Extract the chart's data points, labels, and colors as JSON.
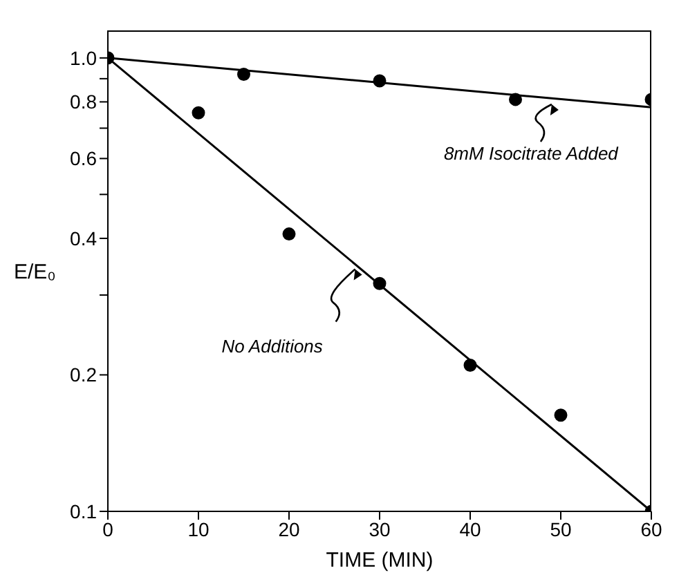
{
  "chart_data": {
    "type": "scatter",
    "xlabel": "TIME (MIN)",
    "ylabel": "E/E₀",
    "log": "y",
    "xlim": [
      0,
      60
    ],
    "xticks": [
      0,
      10,
      20,
      30,
      40,
      50,
      60
    ],
    "ylim": [
      0.1,
      1.15
    ],
    "yticks": [
      0.1,
      0.2,
      {
        "value": 0.3,
        "label": null
      },
      0.4,
      {
        "value": 0.5,
        "label": null
      },
      0.6,
      {
        "value": 0.7,
        "label": null
      },
      0.8,
      {
        "value": 0.9,
        "label": null
      },
      {
        "value": 1,
        "label": "1.0"
      }
    ],
    "series": [
      {
        "marker": "circle",
        "color": "#000000",
        "x": [
          15,
          30,
          45,
          60
        ],
        "values": [
          0.92,
          0.89,
          0.81,
          0.81
        ]
      },
      {
        "marker": "circle",
        "color": "#000000",
        "x": [
          0,
          10,
          20,
          30,
          40,
          50,
          60
        ],
        "values": [
          1.0,
          0.757,
          0.409,
          0.318,
          0.21,
          0.163,
          0.1
        ]
      },
      {
        "type": "line",
        "marker": "none",
        "color": "#000000",
        "x": [
          0,
          60
        ],
        "values": [
          1.0,
          0.778
        ]
      },
      {
        "type": "line",
        "marker": "none",
        "color": "#000000",
        "x": [
          0,
          60
        ],
        "values": [
          1.0,
          0.1
        ]
      }
    ],
    "annotations": [
      {
        "text": "8mM Isocitrate Added",
        "x": 49,
        "y": 0.79
      },
      {
        "text": "No Additions",
        "x": 27.3,
        "y": 0.342
      }
    ]
  }
}
